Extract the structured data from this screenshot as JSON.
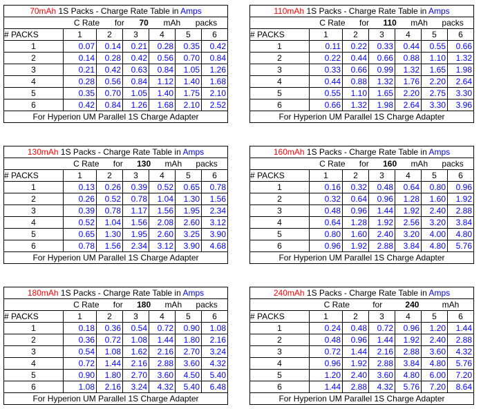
{
  "common": {
    "title_mid": " 1S Packs - Charge Rate Table in ",
    "title_unit": "Amps",
    "c_rate": "C Rate",
    "for": "for",
    "mah": "mAh",
    "packs": "packs",
    "packs_hdr": "# PACKS",
    "cols": [
      "1",
      "2",
      "3",
      "4",
      "5",
      "6"
    ],
    "footer": "For Hyperion UM Parallel 1S Charge Adapter"
  },
  "tables": [
    {
      "cap_label": "70mAh",
      "cap": "70",
      "show_packs": true,
      "rows": [
        [
          "1",
          "0.07",
          "0.14",
          "0.21",
          "0.28",
          "0.35",
          "0.42"
        ],
        [
          "2",
          "0.14",
          "0.28",
          "0.42",
          "0.56",
          "0.70",
          "0.84"
        ],
        [
          "3",
          "0.21",
          "0.42",
          "0.63",
          "0.84",
          "1.05",
          "1.26"
        ],
        [
          "4",
          "0.28",
          "0.56",
          "0.84",
          "1.12",
          "1.40",
          "1.68"
        ],
        [
          "5",
          "0.35",
          "0.70",
          "1.05",
          "1.40",
          "1.75",
          "2.10"
        ],
        [
          "6",
          "0.42",
          "0.84",
          "1.26",
          "1.68",
          "2.10",
          "2.52"
        ]
      ]
    },
    {
      "cap_label": "110mAh",
      "cap": "110",
      "show_packs": true,
      "rows": [
        [
          "1",
          "0.11",
          "0.22",
          "0.33",
          "0.44",
          "0.55",
          "0.66"
        ],
        [
          "2",
          "0.22",
          "0.44",
          "0.66",
          "0.88",
          "1.10",
          "1.32"
        ],
        [
          "3",
          "0.33",
          "0.66",
          "0.99",
          "1.32",
          "1.65",
          "1.98"
        ],
        [
          "4",
          "0.44",
          "0.88",
          "1.32",
          "1.76",
          "2.20",
          "2.64"
        ],
        [
          "5",
          "0.55",
          "1.10",
          "1.65",
          "2.20",
          "2.75",
          "3.30"
        ],
        [
          "6",
          "0.66",
          "1.32",
          "1.98",
          "2.64",
          "3.30",
          "3.96"
        ]
      ]
    },
    {
      "cap_label": "130mAh",
      "cap": "130",
      "show_packs": true,
      "rows": [
        [
          "1",
          "0.13",
          "0.26",
          "0.39",
          "0.52",
          "0.65",
          "0.78"
        ],
        [
          "2",
          "0.26",
          "0.52",
          "0.78",
          "1.04",
          "1.30",
          "1.56"
        ],
        [
          "3",
          "0.39",
          "0.78",
          "1.17",
          "1.56",
          "1.95",
          "2.34"
        ],
        [
          "4",
          "0.52",
          "1.04",
          "1.56",
          "2.08",
          "2.60",
          "3.12"
        ],
        [
          "5",
          "0.65",
          "1.30",
          "1.95",
          "2.60",
          "3.25",
          "3.90"
        ],
        [
          "6",
          "0.78",
          "1.56",
          "2.34",
          "3.12",
          "3.90",
          "4.68"
        ]
      ]
    },
    {
      "cap_label": "160mAh",
      "cap": "160",
      "show_packs": true,
      "rows": [
        [
          "1",
          "0.16",
          "0.32",
          "0.48",
          "0.64",
          "0.80",
          "0.96"
        ],
        [
          "2",
          "0.32",
          "0.64",
          "0.96",
          "1.28",
          "1.60",
          "1.92"
        ],
        [
          "3",
          "0.48",
          "0.96",
          "1.44",
          "1.92",
          "2.40",
          "2.88"
        ],
        [
          "4",
          "0.64",
          "1.28",
          "1.92",
          "2.56",
          "3.20",
          "3.84"
        ],
        [
          "5",
          "0.80",
          "1.60",
          "2.40",
          "3.20",
          "4.00",
          "4.80"
        ],
        [
          "6",
          "0.96",
          "1.92",
          "2.88",
          "3.84",
          "4.80",
          "5.76"
        ]
      ]
    },
    {
      "cap_label": "180mAh",
      "cap": "180",
      "show_packs": true,
      "rows": [
        [
          "1",
          "0.18",
          "0.36",
          "0.54",
          "0.72",
          "0.90",
          "1.08"
        ],
        [
          "2",
          "0.36",
          "0.72",
          "1.08",
          "1.44",
          "1.80",
          "2.16"
        ],
        [
          "3",
          "0.54",
          "1.08",
          "1.62",
          "2.16",
          "2.70",
          "3.24"
        ],
        [
          "4",
          "0.72",
          "1.44",
          "2.16",
          "2.88",
          "3.60",
          "4.32"
        ],
        [
          "5",
          "0.90",
          "1.80",
          "2.70",
          "3.60",
          "4.50",
          "5.40"
        ],
        [
          "6",
          "1.08",
          "2.16",
          "3.24",
          "4.32",
          "5.40",
          "6.48"
        ]
      ]
    },
    {
      "cap_label": "240mAh",
      "cap": "240",
      "show_packs": false,
      "rows": [
        [
          "1",
          "0.24",
          "0.48",
          "0.72",
          "0.96",
          "1.20",
          "1.44"
        ],
        [
          "2",
          "0.48",
          "0.96",
          "1.44",
          "1.92",
          "2.40",
          "2.88"
        ],
        [
          "3",
          "0.72",
          "1.44",
          "2.16",
          "2.88",
          "3.60",
          "4.32"
        ],
        [
          "4",
          "0.96",
          "1.92",
          "2.88",
          "3.84",
          "4.80",
          "5.76"
        ],
        [
          "5",
          "1.20",
          "2.40",
          "3.60",
          "4.80",
          "6.00",
          "7.20"
        ],
        [
          "6",
          "1.44",
          "2.88",
          "4.32",
          "5.76",
          "7.20",
          "8.64"
        ]
      ]
    }
  ]
}
